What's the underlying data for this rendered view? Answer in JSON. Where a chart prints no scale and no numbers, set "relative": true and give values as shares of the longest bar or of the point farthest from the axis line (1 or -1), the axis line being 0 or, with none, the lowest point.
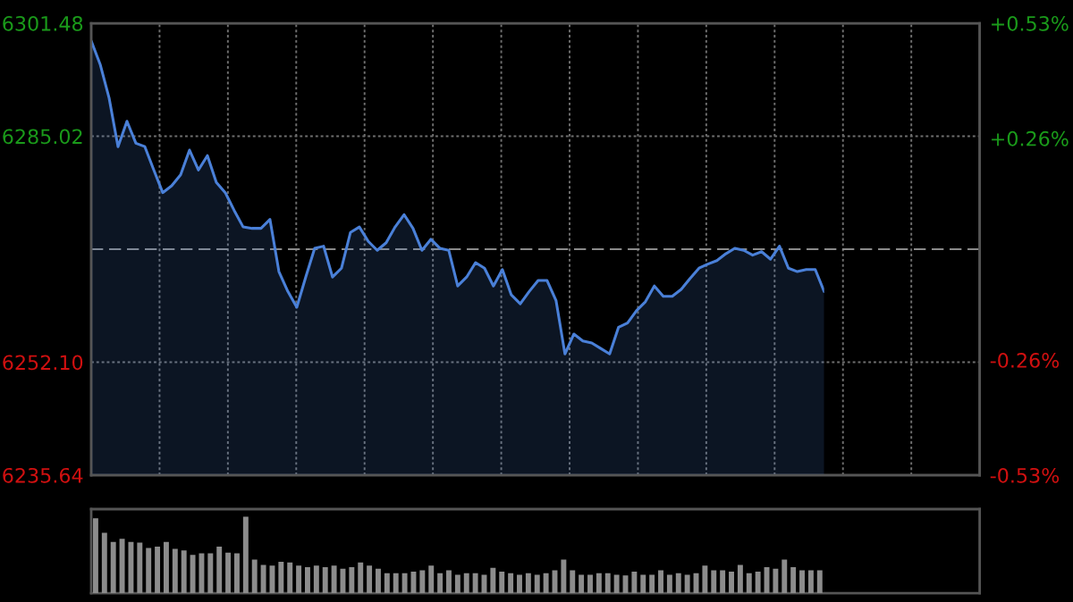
{
  "chart_data": [
    {
      "type": "area",
      "categories": [
        null,
        null,
        null,
        null,
        null,
        null,
        null,
        null,
        null,
        null,
        null,
        null,
        null,
        null,
        null,
        null,
        null,
        null,
        null,
        null,
        null,
        null,
        null,
        null,
        null,
        null,
        null,
        null,
        null,
        null,
        null,
        null,
        null,
        null,
        null,
        null,
        null,
        null,
        null,
        null,
        null,
        null,
        null,
        null,
        null,
        null,
        null,
        null,
        null,
        null,
        null,
        null,
        null,
        null,
        null,
        null,
        null,
        null,
        null,
        null,
        null,
        null,
        null,
        null,
        null,
        null,
        null,
        null,
        null,
        null,
        null,
        null,
        null,
        null,
        null,
        null,
        null,
        null,
        null,
        null,
        null,
        null,
        null
      ],
      "series": [
        {
          "color": "#4a80d8",
          "values": [
            6298.9,
            6295.5,
            6290.6,
            6283.5,
            6287.2,
            6284.0,
            6283.5,
            6280.1,
            6276.8,
            6277.8,
            6279.4,
            6283.0,
            6280.1,
            6282.2,
            6278.3,
            6276.8,
            6274.2,
            6271.8,
            6271.6,
            6271.6,
            6272.9,
            6265.3,
            6262.4,
            6260.1,
            6264.5,
            6268.7,
            6269.0,
            6264.5,
            6265.8,
            6271.0,
            6271.8,
            6269.7,
            6268.4,
            6269.5,
            6271.8,
            6273.6,
            6271.6,
            6268.4,
            6270.0,
            6268.7,
            6268.4,
            6263.2,
            6264.5,
            6266.6,
            6265.8,
            6263.2,
            6265.6,
            6261.9,
            6260.6,
            6262.4,
            6264.0,
            6264.0,
            6261.1,
            6253.3,
            6256.2,
            6255.2,
            6254.9,
            6254.1,
            6253.3,
            6257.2,
            6257.8,
            6259.6,
            6260.9,
            6263.2,
            6261.7,
            6261.7,
            6262.7,
            6264.3,
            6265.8,
            6266.4,
            6266.9,
            6267.9,
            6268.7,
            6268.4,
            6267.7,
            6268.2,
            6267.1,
            6269.0,
            6265.8,
            6265.3,
            6265.6,
            6265.6,
            6262.4
          ]
        }
      ],
      "ylim": [
        6235.64,
        6301.48
      ],
      "yticks": [
        6235.64,
        {
          "value": 6252.1,
          "label": "6252.10"
        },
        6285.02,
        6301.48
      ],
      "y2lim": [
        -0.53,
        0.53
      ],
      "y2ticks": [
        {
          "value": -0.53,
          "label": "-0.53%"
        },
        {
          "value": -0.26,
          "label": "-0.26%"
        },
        {
          "value": 0.26,
          "label": "+0.26%"
        },
        {
          "value": 0.53,
          "label": "+0.53%"
        }
      ],
      "ref_lines": [
        {
          "axis": "y",
          "value": 6268.56,
          "color": "#8a8a8a",
          "line_style": "dashed"
        }
      ],
      "grid": true
    },
    {
      "type": "bar",
      "relative": true,
      "categories": [
        null,
        null,
        null,
        null,
        null,
        null,
        null,
        null,
        null,
        null,
        null,
        null,
        null,
        null,
        null,
        null,
        null,
        null,
        null,
        null,
        null,
        null,
        null,
        null,
        null,
        null,
        null,
        null,
        null,
        null,
        null,
        null,
        null,
        null,
        null,
        null,
        null,
        null,
        null,
        null,
        null,
        null,
        null,
        null,
        null,
        null,
        null,
        null,
        null,
        null,
        null,
        null,
        null,
        null,
        null,
        null,
        null,
        null,
        null,
        null,
        null,
        null,
        null,
        null,
        null,
        null,
        null,
        null,
        null,
        null,
        null,
        null,
        null,
        null,
        null,
        null,
        null,
        null,
        null,
        null,
        null,
        null,
        null
      ],
      "series": [
        {
          "color": "#8c8c8c",
          "values": [
            0.98,
            0.79,
            0.67,
            0.71,
            0.67,
            0.66,
            0.59,
            0.61,
            0.67,
            0.58,
            0.56,
            0.5,
            0.52,
            0.52,
            0.61,
            0.53,
            0.52,
            1,
            0.44,
            0.37,
            0.36,
            0.41,
            0.4,
            0.36,
            0.34,
            0.36,
            0.34,
            0.36,
            0.32,
            0.34,
            0.4,
            0.36,
            0.32,
            0.26,
            0.26,
            0.26,
            0.28,
            0.3,
            0.36,
            0.26,
            0.3,
            0.24,
            0.26,
            0.26,
            0.24,
            0.33,
            0.28,
            0.26,
            0.24,
            0.26,
            0.24,
            0.26,
            0.3,
            0.44,
            0.3,
            0.24,
            0.24,
            0.26,
            0.26,
            0.24,
            0.23,
            0.28,
            0.24,
            0.24,
            0.3,
            0.24,
            0.26,
            0.24,
            0.26,
            0.36,
            0.3,
            0.3,
            0.28,
            0.37,
            0.26,
            0.28,
            0.34,
            0.32,
            0.44,
            0.34,
            0.3,
            0.3,
            0.3
          ]
        }
      ]
    }
  ]
}
